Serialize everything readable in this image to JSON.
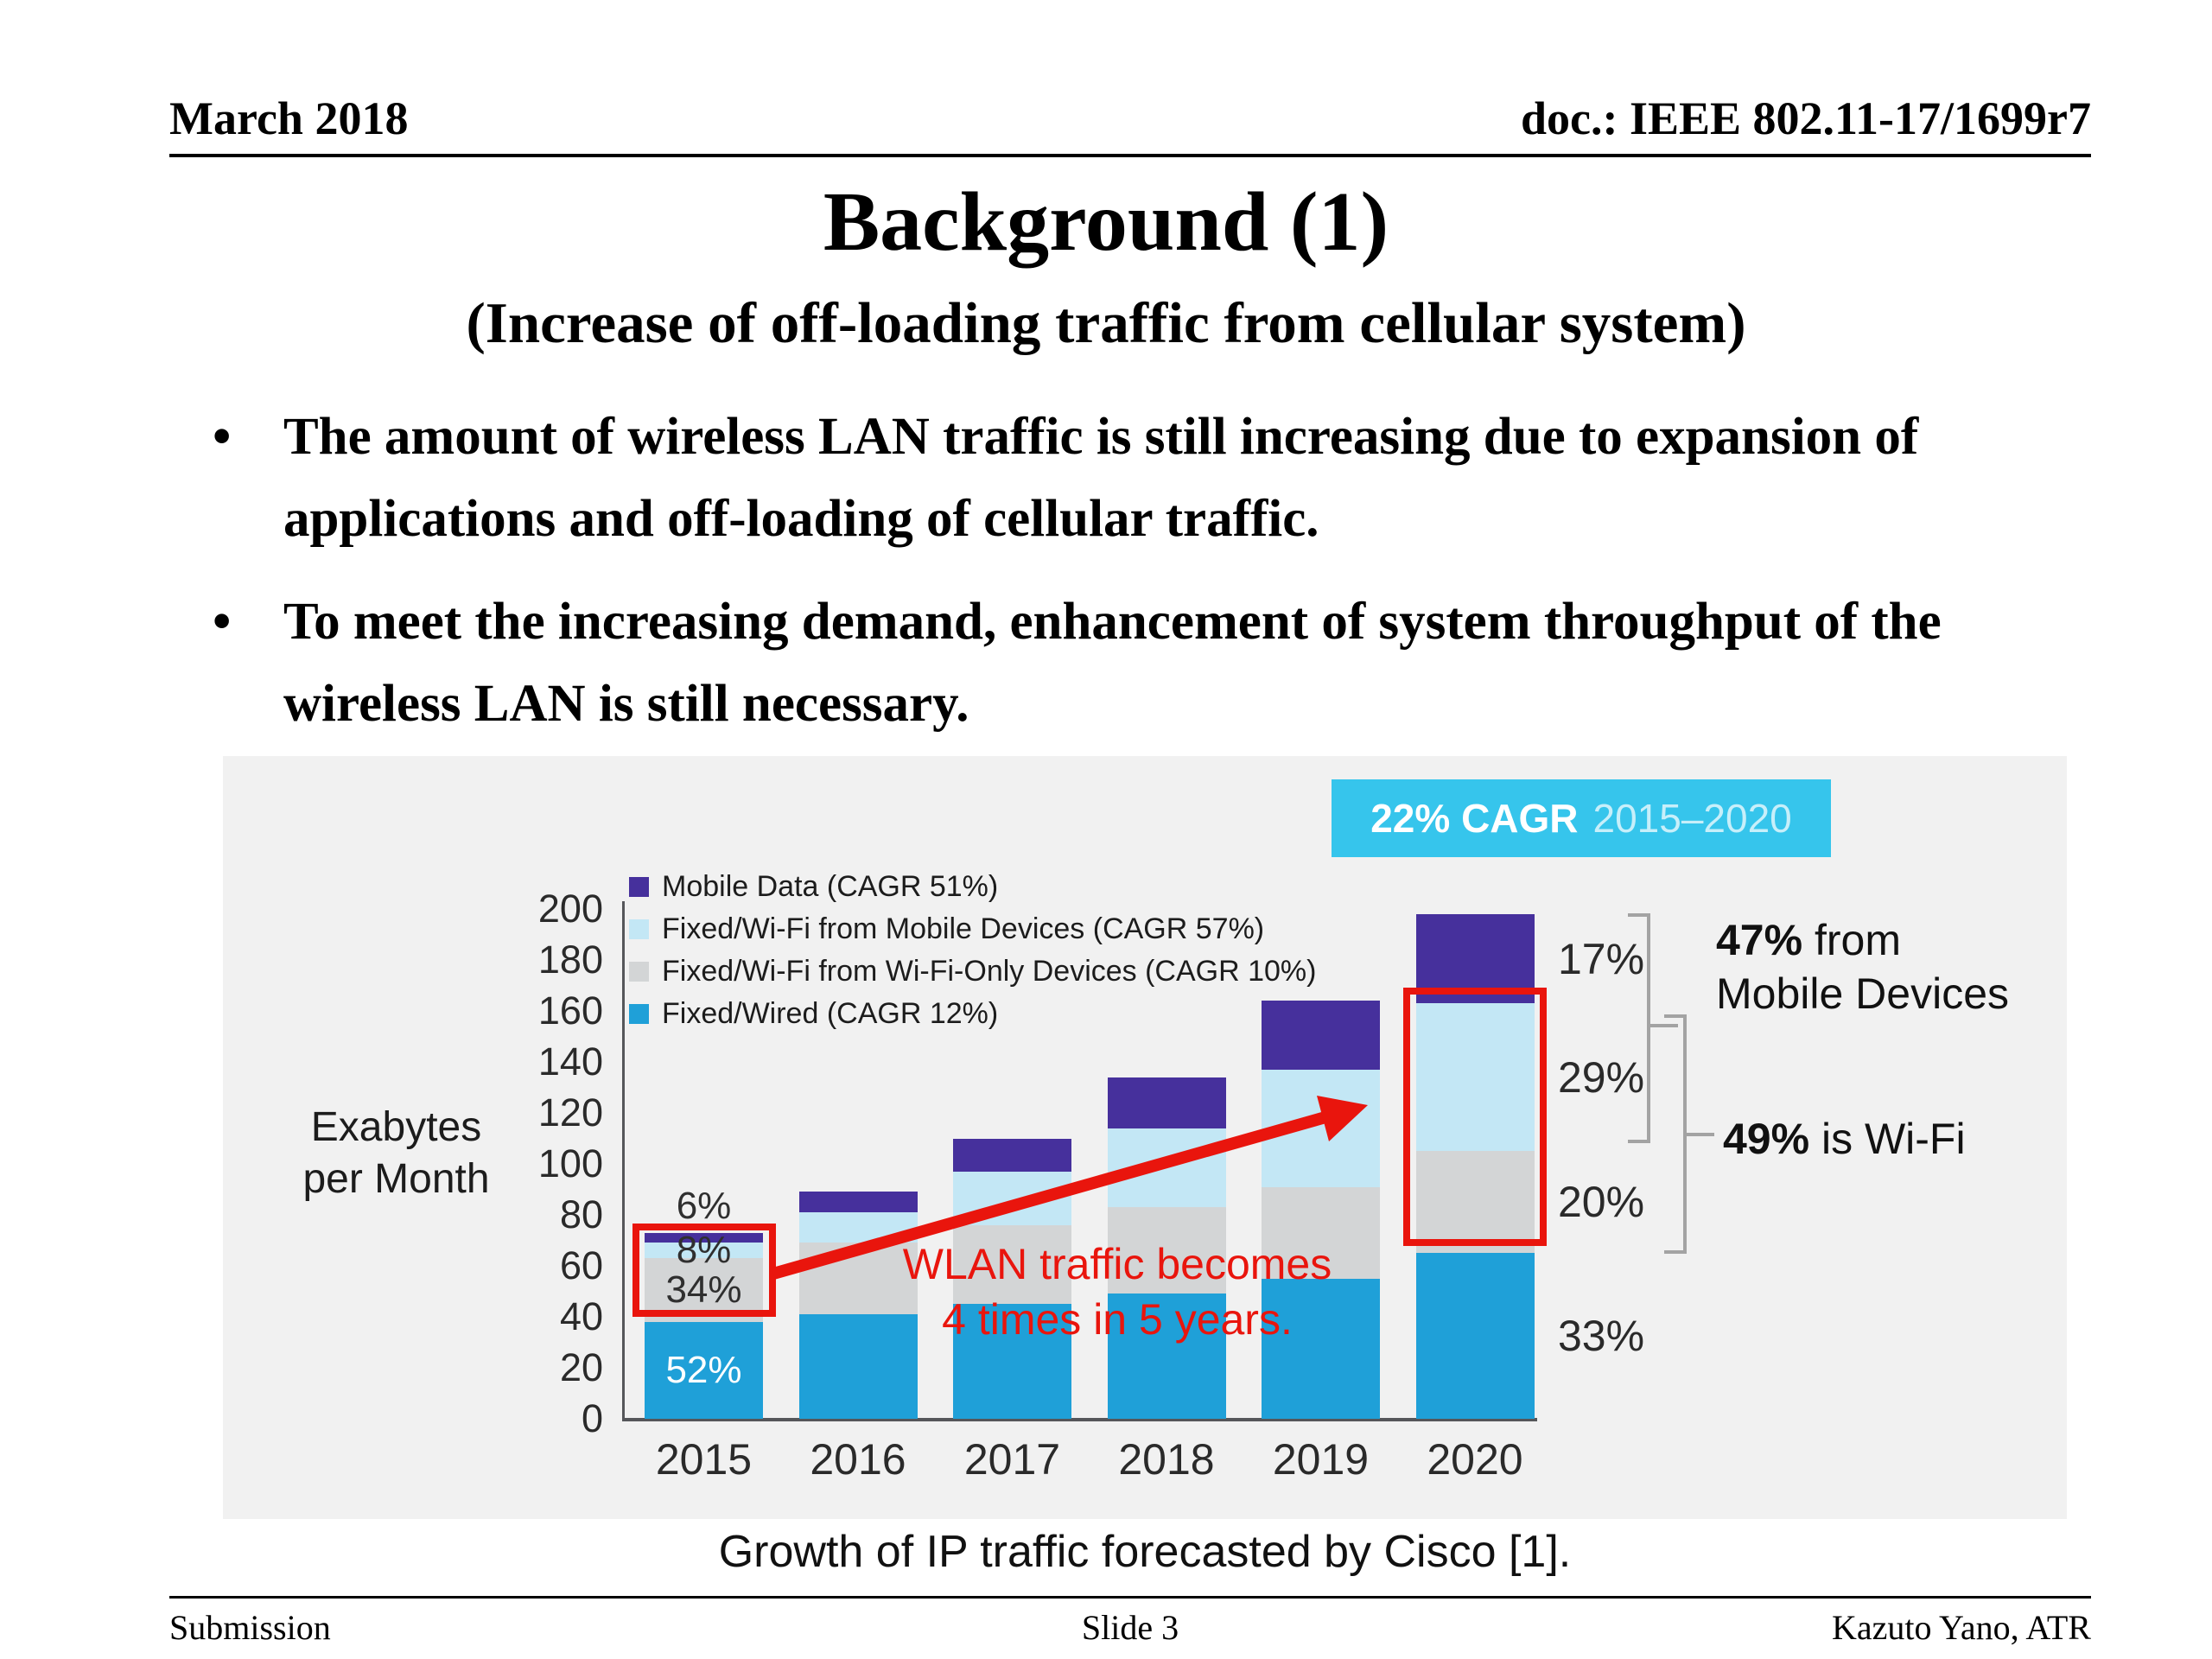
{
  "header": {
    "date": "March 2018",
    "doc": "doc.: IEEE 802.11-17/1699r7"
  },
  "title": "Background (1)",
  "subtitle": "(Increase of off-loading traffic from cellular system)",
  "bullets": [
    "The amount of wireless LAN traffic is still increasing due to expansion of applications and off-loading of cellular traffic.",
    "To meet the increasing demand, enhancement of system throughput of the wireless LAN is still necessary."
  ],
  "chart_data": {
    "type": "bar",
    "subtype": "stacked-bar",
    "categories": [
      "2015",
      "2016",
      "2017",
      "2018",
      "2019",
      "2020"
    ],
    "series": [
      {
        "name": "Fixed/Wired (CAGR 12%)",
        "color": "#1fa0d8",
        "values": [
          38,
          41,
          45,
          49,
          55,
          65
        ]
      },
      {
        "name": "Fixed/Wi-Fi from Wi-Fi-Only Devices (CAGR 10%)",
        "color": "#d3d5d6",
        "values": [
          25,
          28,
          31,
          34,
          36,
          40
        ]
      },
      {
        "name": "Fixed/Wi-Fi from Mobile Devices (CAGR 57%)",
        "color": "#c3e7f5",
        "values": [
          6,
          12,
          21,
          31,
          46,
          58
        ]
      },
      {
        "name": "Mobile Data (CAGR 51%)",
        "color": "#46309c",
        "values": [
          4,
          8,
          13,
          20,
          27,
          35
        ]
      }
    ],
    "ylim": [
      0,
      200
    ],
    "ytick_step": 20,
    "ylabel_lines": [
      "Exabytes",
      "per Month"
    ],
    "banner": {
      "bold": "22% CAGR",
      "rest": "2015–2020",
      "bg": "#36c5ec"
    },
    "bar2015_segment_labels": [
      "52%",
      "34%",
      "8%",
      "6%"
    ],
    "bar2020_side_labels": [
      "33%",
      "20%",
      "29%",
      "17%"
    ],
    "callout_mobile": {
      "bold": "47%",
      "rest_line1": " from",
      "line2": "Mobile Devices"
    },
    "callout_wifi": {
      "bold": "49%",
      "rest": " is Wi-Fi"
    },
    "note": {
      "line1": "WLAN traffic becomes",
      "line2": "4 times in 5 years.",
      "color": "#e9150d"
    },
    "caption": "Growth of IP traffic forecasted by Cisco [1].",
    "legend_position": "upper-left",
    "grid": false
  },
  "footer": {
    "left": "Submission",
    "center": "Slide 3",
    "right": "Kazuto Yano, ATR"
  }
}
